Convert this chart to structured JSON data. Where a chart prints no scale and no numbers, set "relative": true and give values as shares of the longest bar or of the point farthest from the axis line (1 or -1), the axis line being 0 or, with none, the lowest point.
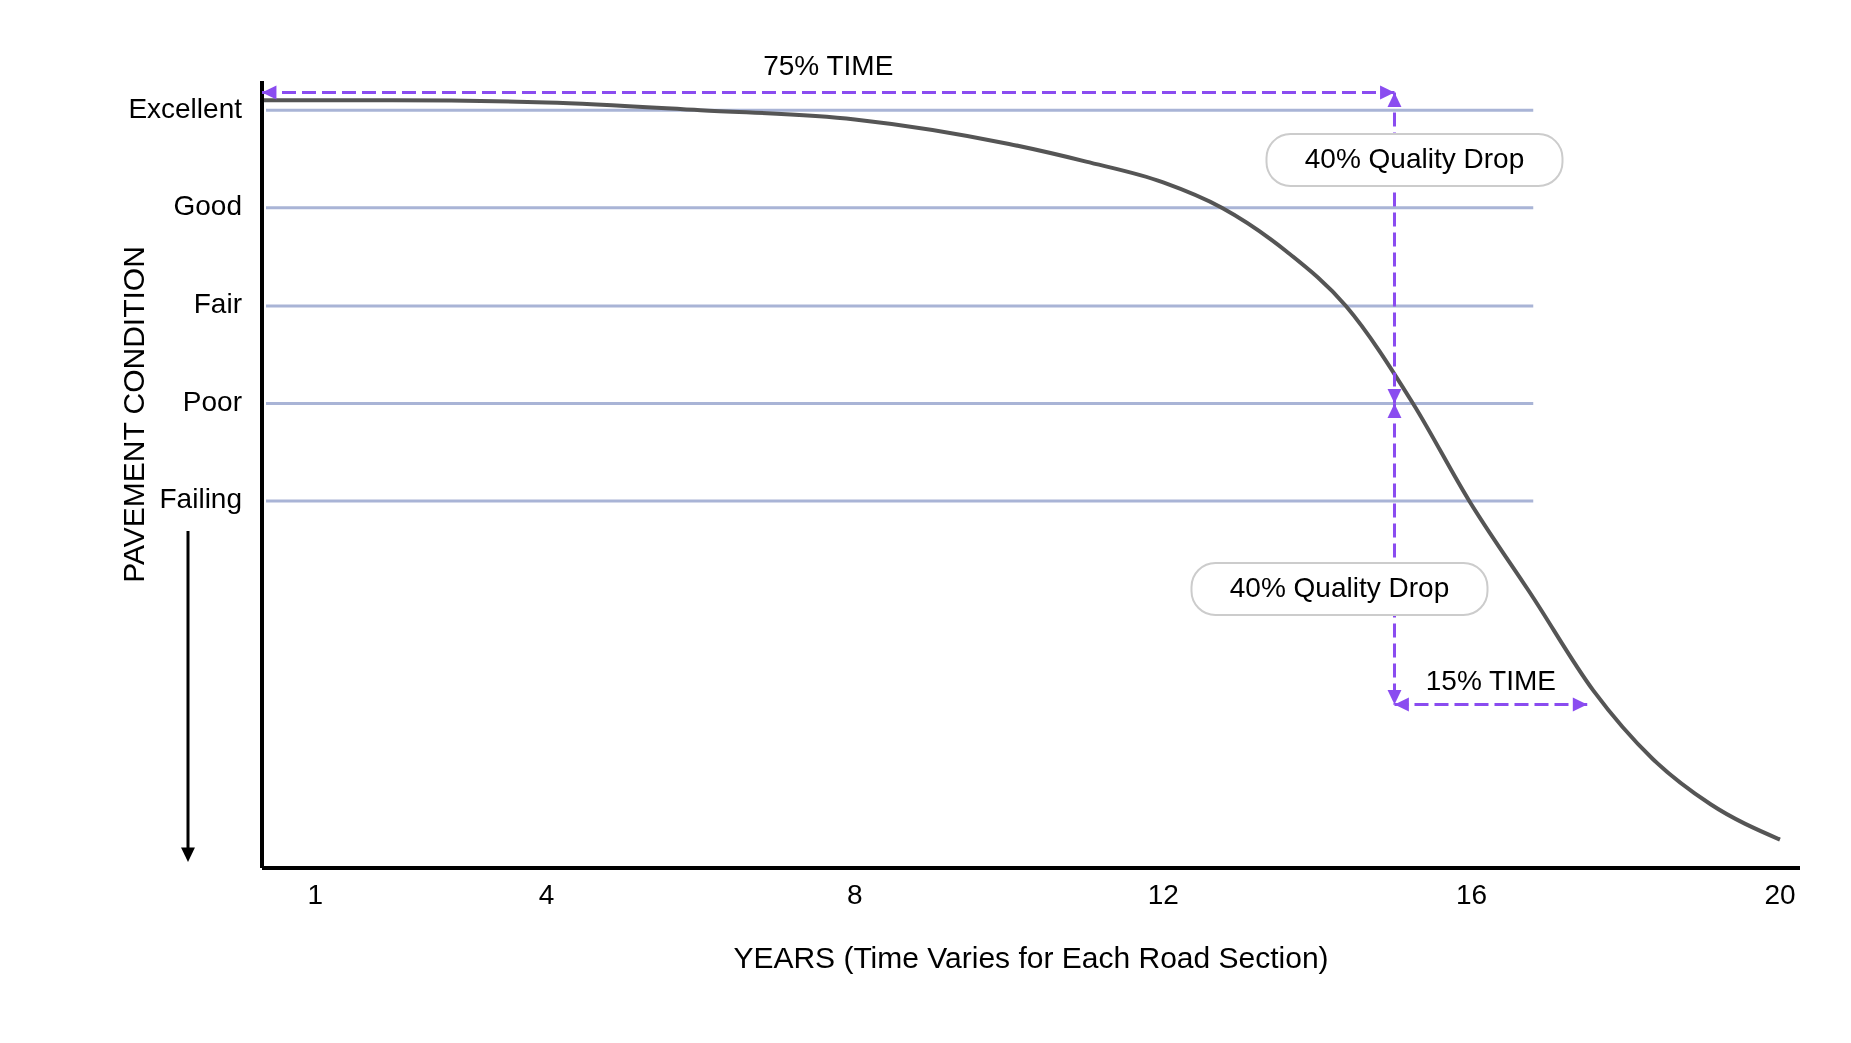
{
  "chart_data": {
    "type": "line",
    "xlabel": "YEARS (Time Varies for Each Road Section)",
    "ylabel": "PAVEMENT CONDITION",
    "relative": true,
    "x": [
      0.31,
      2,
      4,
      6,
      8,
      10,
      11,
      12,
      12.76,
      13.6,
      14.37,
      15.24,
      15.97,
      16.8,
      17.58,
      18.35,
      19.1,
      20
    ],
    "series": [
      {
        "color": "#555555",
        "values": [
          1,
          1,
          0.997,
          0.987,
          0.975,
          0.943,
          0.92,
          0.893,
          0.86,
          0.803,
          0.732,
          0.605,
          0.478,
          0.352,
          0.231,
          0.142,
          0.083,
          0.037
        ]
      }
    ],
    "xlim": [
      0.31,
      20.26
    ],
    "xticks": [
      1,
      4,
      8,
      12,
      16,
      20
    ],
    "ref_lines": [
      {
        "axis": "y",
        "value": 0.987,
        "label": "Excellent",
        "color": "#a9b4d6"
      },
      {
        "axis": "y",
        "value": 0.86,
        "label": "Good",
        "color": "#a9b4d6"
      },
      {
        "axis": "y",
        "value": 0.732,
        "label": "Fair",
        "color": "#a9b4d6"
      },
      {
        "axis": "y",
        "value": 0.605,
        "label": "Poor",
        "color": "#a9b4d6"
      },
      {
        "axis": "y",
        "value": 0.478,
        "label": "Failing",
        "color": "#a9b4d6"
      }
    ],
    "annotations": [
      "75% TIME",
      "40% Quality Drop",
      "40% Quality Drop",
      "15% TIME"
    ]
  }
}
